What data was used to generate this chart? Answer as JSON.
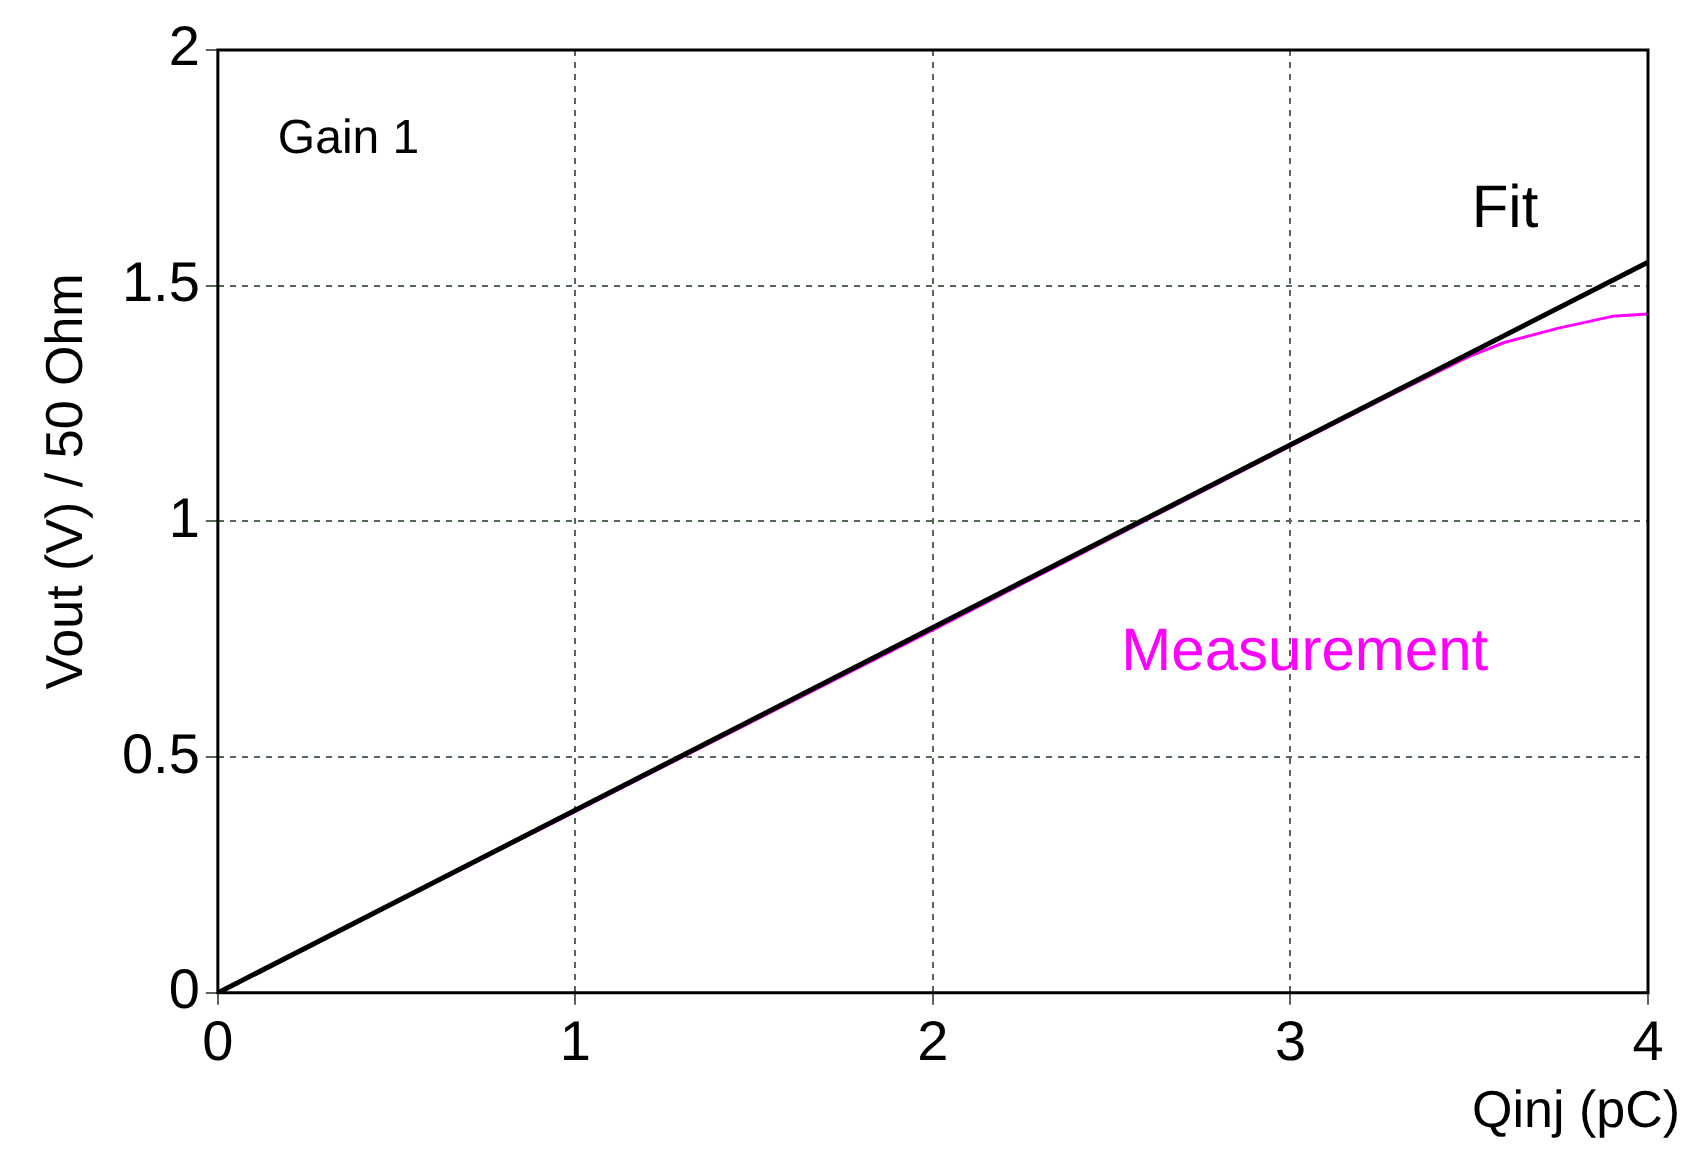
{
  "chart_data": {
    "type": "line",
    "xlabel": "Qinj (pC)",
    "ylabel": "Vout (V) / 50 Ohm",
    "xlim": [
      0,
      4
    ],
    "xticks": [
      0,
      1,
      2,
      3,
      4
    ],
    "ylim": [
      0,
      2
    ],
    "yticks": [
      0,
      0.5,
      1,
      1.5,
      2
    ],
    "grid": true,
    "legend": false,
    "marker": "none",
    "annotations": [
      "Gain 1"
    ],
    "series": [
      {
        "name": "Fit",
        "color": "#000000",
        "x": [
          0,
          4
        ],
        "values": [
          0,
          1.55
        ]
      },
      {
        "name": "Measurement",
        "color": "#ff00ff",
        "x": [
          0,
          1,
          2,
          3,
          3.3,
          3.5,
          3.6,
          3.75,
          3.9,
          4
        ],
        "values": [
          0,
          0.385,
          0.77,
          1.16,
          1.275,
          1.35,
          1.38,
          1.41,
          1.435,
          1.44
        ]
      }
    ]
  }
}
